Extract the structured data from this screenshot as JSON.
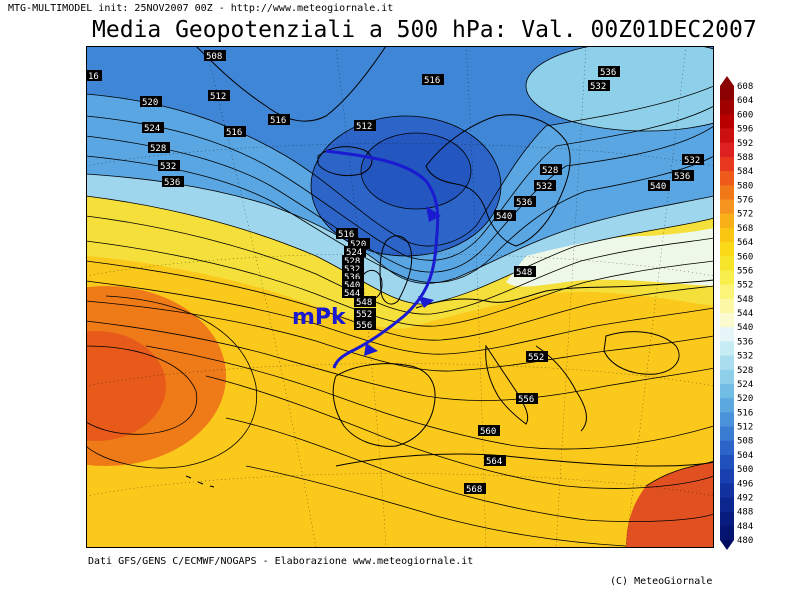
{
  "header": {
    "info": "MTG-MULTIMODEL init: 25NOV2007 00Z - http://www.meteogiornale.it",
    "title": "Media Geopotenziali a 500 hPa: Val. 00Z01DEC2007"
  },
  "footer": {
    "source": "Dati GFS/GENS C/ECMWF/NOGAPS - Elaborazione www.meteogiornale.it",
    "copyright": "(C) MeteoGiornale"
  },
  "annotation": {
    "front_label": "mPk",
    "front_color": "#1a1ad0"
  },
  "contour_labels": [
    "16",
    "508",
    "520",
    "512",
    "516",
    "516",
    "512",
    "516",
    "524",
    "528",
    "532",
    "536",
    "516",
    "520",
    "524",
    "528",
    "532",
    "536",
    "540",
    "544",
    "548",
    "552",
    "556",
    "528",
    "532",
    "536",
    "540",
    "548",
    "552",
    "556",
    "560",
    "564",
    "568",
    "536",
    "532",
    "532",
    "536",
    "540"
  ],
  "colorbar": {
    "levels": [
      "608",
      "604",
      "600",
      "596",
      "592",
      "588",
      "584",
      "580",
      "576",
      "572",
      "568",
      "564",
      "560",
      "556",
      "552",
      "548",
      "544",
      "540",
      "536",
      "532",
      "528",
      "524",
      "520",
      "516",
      "512",
      "508",
      "504",
      "500",
      "496",
      "492",
      "488",
      "484",
      "480"
    ],
    "colors": [
      "#8b0000",
      "#a00000",
      "#b80000",
      "#cc0f0f",
      "#dd2020",
      "#e83820",
      "#ee5a1a",
      "#f07818",
      "#f59520",
      "#f9b018",
      "#fbc612",
      "#fbd818",
      "#f6e52a",
      "#f8ee4c",
      "#fcf478",
      "#fdf8a6",
      "#fcfbd0",
      "#e6f6f8",
      "#c8ecf4",
      "#aadeee",
      "#8ecfea",
      "#72bde6",
      "#5ca8e0",
      "#4a92da",
      "#3a7cd2",
      "#2c64c8",
      "#2050bc",
      "#1840b0",
      "#1232a0",
      "#0c2690",
      "#081c80",
      "#041470",
      "#000c60"
    ]
  }
}
